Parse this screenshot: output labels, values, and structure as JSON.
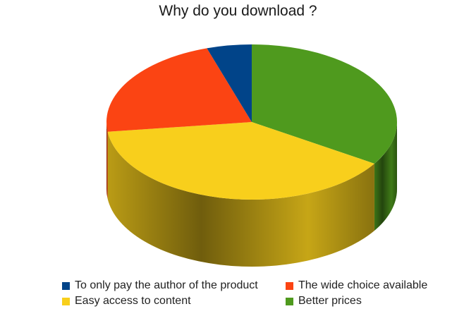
{
  "chart_data": {
    "type": "pie",
    "title": "Why do you download ?",
    "legend_position": "bottom",
    "slices": [
      {
        "label": "Better prices",
        "value": 34,
        "color": "#4f9a1e"
      },
      {
        "label": "Easy access to content",
        "value": 39,
        "color": "#f8cf1c"
      },
      {
        "label": "The wide choice available",
        "value": 22,
        "color": "#fb4413"
      },
      {
        "label": "To only pay the author of the product",
        "value": 5,
        "color": "#014489"
      }
    ],
    "legend_order": [
      3,
      2,
      1,
      0
    ]
  }
}
